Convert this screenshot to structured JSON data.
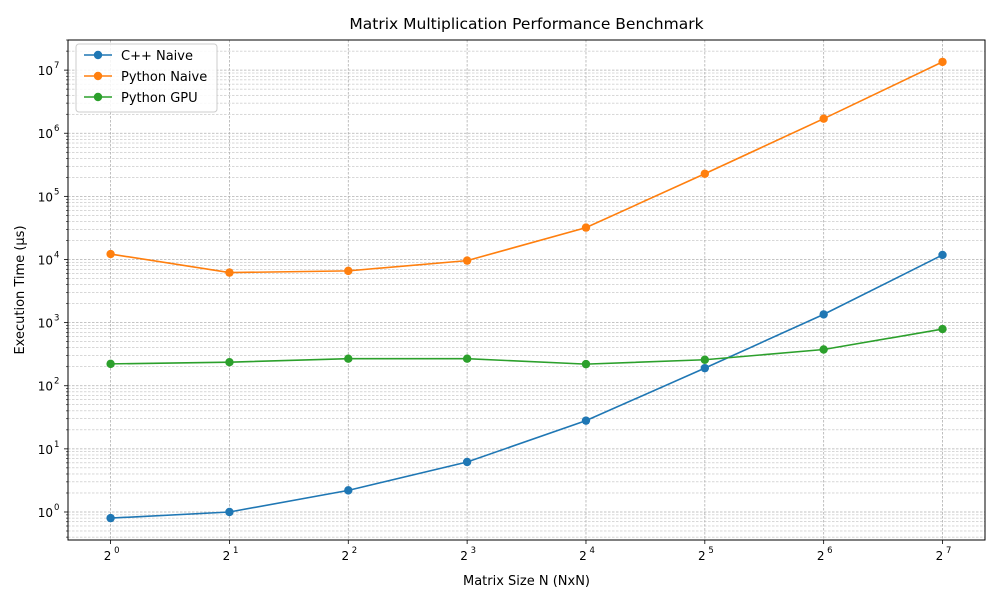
{
  "chart_data": {
    "type": "line",
    "title": "Matrix Multiplication Performance Benchmark",
    "xlabel": "Matrix Size N (NxN)",
    "ylabel": "Execution Time (µs)",
    "x_scale": "log2",
    "y_scale": "log10",
    "x": [
      1,
      2,
      4,
      8,
      16,
      32,
      64,
      128
    ],
    "x_tick_labels": [
      {
        "base": "2",
        "exp": "0"
      },
      {
        "base": "2",
        "exp": "1"
      },
      {
        "base": "2",
        "exp": "2"
      },
      {
        "base": "2",
        "exp": "3"
      },
      {
        "base": "2",
        "exp": "4"
      },
      {
        "base": "2",
        "exp": "5"
      },
      {
        "base": "2",
        "exp": "6"
      },
      {
        "base": "2",
        "exp": "7"
      }
    ],
    "y_tick_labels": [
      {
        "value": 1,
        "base": "10",
        "exp": "0"
      },
      {
        "value": 10,
        "base": "10",
        "exp": "1"
      },
      {
        "value": 100,
        "base": "10",
        "exp": "2"
      },
      {
        "value": 1000,
        "base": "10",
        "exp": "3"
      },
      {
        "value": 10000,
        "base": "10",
        "exp": "4"
      },
      {
        "value": 100000,
        "base": "10",
        "exp": "5"
      },
      {
        "value": 1000000,
        "base": "10",
        "exp": "6"
      },
      {
        "value": 10000000,
        "base": "10",
        "exp": "7"
      }
    ],
    "xlim": [
      0.78,
      164
    ],
    "ylim": [
      0.36,
      30000000
    ],
    "grid": "both (major and minor)",
    "legend_position": "top-left",
    "series": [
      {
        "name": "C++ Naive",
        "color": "#1f77b4",
        "values": [
          0.8,
          1.0,
          2.2,
          6.2,
          28,
          190,
          1350,
          11800
        ]
      },
      {
        "name": "Python Naive",
        "color": "#ff7f0e",
        "values": [
          12200,
          6200,
          6600,
          9600,
          32000,
          228000,
          1700000,
          13500000
        ]
      },
      {
        "name": "Python GPU",
        "color": "#2ca02c",
        "values": [
          222,
          236,
          268,
          268,
          220,
          258,
          375,
          790
        ]
      }
    ]
  }
}
